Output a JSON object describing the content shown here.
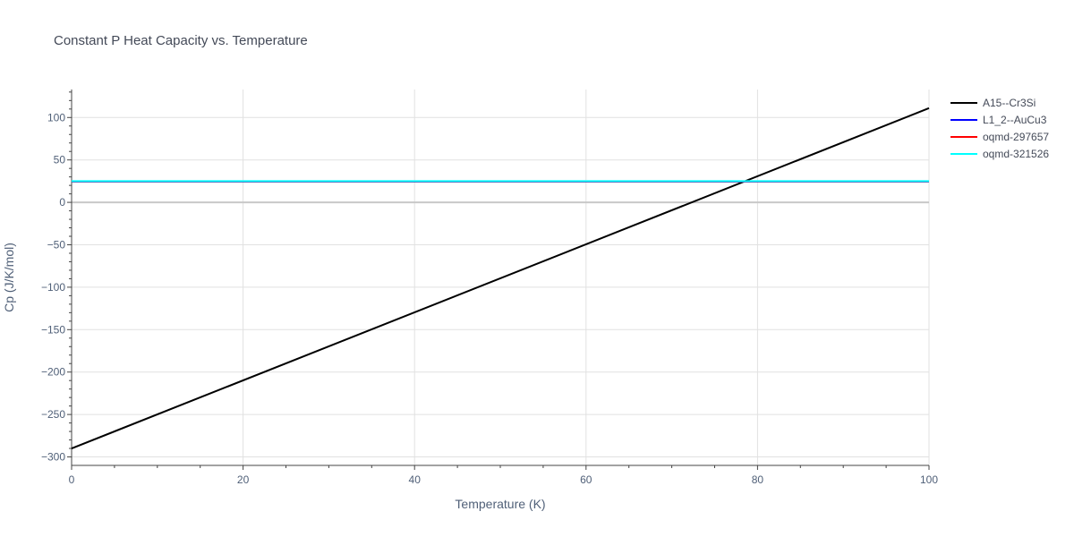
{
  "chart_data": {
    "type": "line",
    "title": "Constant P Heat Capacity vs. Temperature",
    "xlabel": "Temperature (K)",
    "ylabel": "Cp (J/K/mol)",
    "xlim": [
      0,
      100
    ],
    "ylim": [
      -310,
      133
    ],
    "xticks": [
      0,
      20,
      40,
      60,
      80,
      100
    ],
    "xtick_labels": [
      "0",
      "20",
      "40",
      "60",
      "80",
      "100"
    ],
    "yticks": [
      100,
      50,
      0,
      -50,
      -100,
      -150,
      -200,
      -250,
      -300
    ],
    "ytick_labels": [
      "100",
      "50",
      "0",
      "−50",
      "−100",
      "−150",
      "−200",
      "−250",
      "−300"
    ],
    "grid": true,
    "legend_position": "top-right",
    "series": [
      {
        "name": "A15--Cr3Si",
        "color": "#000000",
        "x": [
          0,
          100
        ],
        "y": [
          -290,
          111
        ]
      },
      {
        "name": "L1_2--AuCu3",
        "color": "#0000ff",
        "x": [
          0,
          100
        ],
        "y": [
          24.5,
          24.5
        ]
      },
      {
        "name": "oqmd-297657",
        "color": "#ff0000",
        "x": [
          0,
          100
        ],
        "y": [
          24.8,
          24.8
        ]
      },
      {
        "name": "oqmd-321526",
        "color": "#00ffff",
        "x": [
          0,
          100
        ],
        "y": [
          25,
          25
        ]
      }
    ]
  }
}
